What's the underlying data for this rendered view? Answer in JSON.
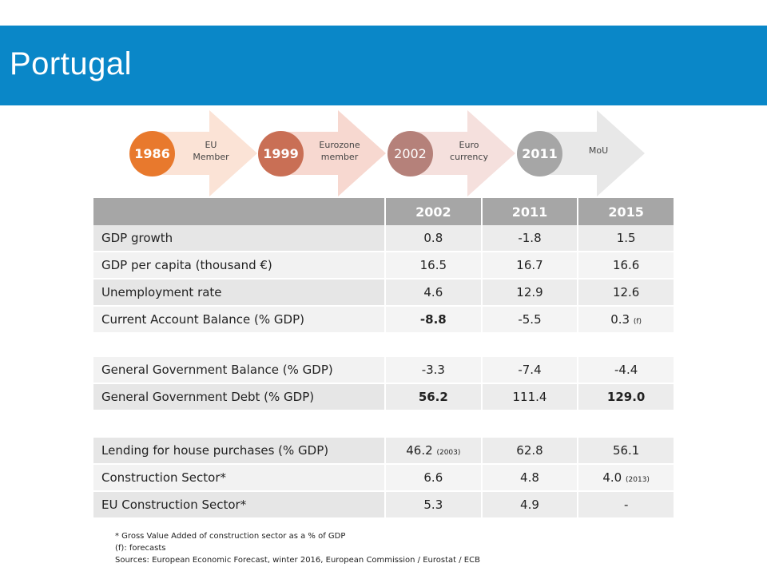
{
  "title": "Portugal",
  "timeline": [
    {
      "year": "1986",
      "line1": "EU",
      "line2": "Member",
      "circle_color": "#e8792d",
      "arrow_color": "#fbe3d6"
    },
    {
      "year": "1999",
      "line1": "Eurozone",
      "line2": "member",
      "circle_color": "#c96f55",
      "arrow_color": "#f7d8d0"
    },
    {
      "year": "2002",
      "line1": "Euro",
      "line2": "currency",
      "circle_color": "#b5817a",
      "arrow_color": "#f5e0dd"
    },
    {
      "year": "2011",
      "line1": "MoU",
      "line2": "",
      "circle_color": "#a6a6a6",
      "arrow_color": "#e8e8e8"
    }
  ],
  "table": {
    "headers": [
      "2002",
      "2011",
      "2015"
    ],
    "group1": [
      {
        "label": "GDP growth",
        "v1": "0.8",
        "v2": "-1.8",
        "v3": "1.5"
      },
      {
        "label": "GDP per capita (thousand €)",
        "v1": "16.5",
        "v2": "16.7",
        "v3": "16.6"
      },
      {
        "label": "Unemployment rate",
        "v1": "4.6",
        "v2": "12.9",
        "v3": "12.6"
      },
      {
        "label": "Current Account Balance (% GDP)",
        "v1": "-8.8",
        "v2": "-5.5",
        "v3": "0.3",
        "v3_note": "(f)"
      }
    ],
    "group2": [
      {
        "label": "General Government Balance (% GDP)",
        "v1": "-3.3",
        "v2": "-7.4",
        "v3": "-4.4"
      },
      {
        "label": "General Government Debt (% GDP)",
        "v1": "56.2",
        "v2": "111.4",
        "v3": "129.0"
      }
    ],
    "group3": [
      {
        "label": "Lending for house purchases (% GDP)",
        "v1": "46.2",
        "v1_note": "(2003)",
        "v2": "62.8",
        "v3": "56.1"
      },
      {
        "label": "Construction Sector*",
        "v1": "6.6",
        "v2": "4.8",
        "v3": "4.0",
        "v3_note": "(2013)"
      },
      {
        "label": "EU Construction Sector*",
        "v1": "5.3",
        "v2": "4.9",
        "v3": "-"
      }
    ]
  },
  "notes": {
    "line1": "* Gross Value Added of construction sector as a % of GDP",
    "line2": "(f): forecasts",
    "line3": "Sources: European Economic Forecast, winter 2016, European Commission  / Eurostat / ECB"
  }
}
